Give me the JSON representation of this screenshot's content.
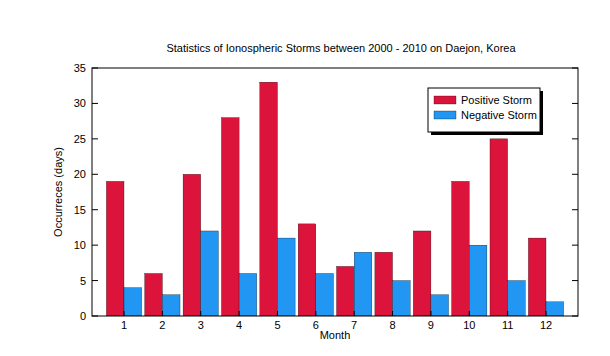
{
  "chart_data": {
    "type": "bar",
    "title": "Statistics of Ionospheric Storms between 2000 - 2010 on Daejon, Korea",
    "x_label": "Month",
    "y_label": "Occurreces (days)",
    "categories": [
      "1",
      "2",
      "3",
      "4",
      "5",
      "6",
      "7",
      "8",
      "9",
      "10",
      "11",
      "12"
    ],
    "series": [
      {
        "name": "Positive Storm",
        "color": "#dc143c",
        "values": [
          19,
          6,
          20,
          28,
          33,
          13,
          7,
          9,
          12,
          19,
          25,
          11
        ]
      },
      {
        "name": "Negative Storm",
        "color": "#2196f3",
        "values": [
          4,
          3,
          12,
          6,
          11,
          6,
          9,
          5,
          3,
          10,
          5,
          2
        ]
      }
    ],
    "ylim": [
      0,
      35
    ],
    "yticks": [
      0,
      5,
      10,
      15,
      20,
      25,
      30,
      35
    ],
    "grid": false,
    "legend": "upper right"
  }
}
